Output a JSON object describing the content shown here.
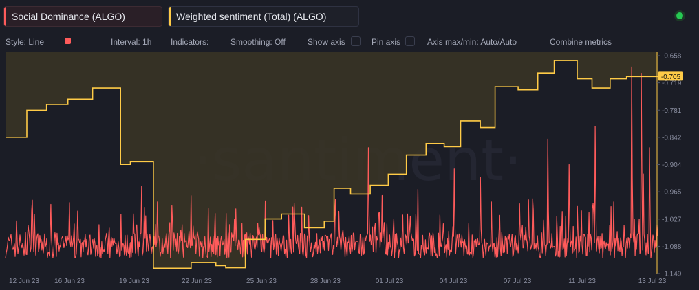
{
  "metrics": [
    {
      "label": "Social Dominance (ALGO)",
      "color": "#ff5b5b"
    },
    {
      "label": "Weighted sentiment (Total) (ALGO)",
      "color": "#ffcb47"
    }
  ],
  "toolbar": {
    "style": "Style: Line",
    "interval": "Interval: 1h",
    "indicators": "Indicators:",
    "smoothing": "Smoothing: Off",
    "show_axis": "Show axis",
    "pin_axis": "Pin axis",
    "axis_minmax": "Axis max/min: Auto/Auto",
    "combine": "Combine metrics"
  },
  "watermark": "·santiment·",
  "chart_data": {
    "type": "line",
    "x_labels": [
      "12 Jun 23",
      "16 Jun 23",
      "19 Jun 23",
      "22 Jun 23",
      "25 Jun 23",
      "28 Jun 23",
      "01 Jul 23",
      "04 Jul 23",
      "07 Jul 23",
      "11 Jul 23",
      "13 Jul 23"
    ],
    "y_ticks": [
      "-0.658",
      "-0.719",
      "-0.781",
      "-0.842",
      "-0.904",
      "-0.965",
      "-1.027",
      "-1.088",
      "-1.149"
    ],
    "ylim": [
      -1.149,
      -0.658
    ],
    "current_value_label": "-0.705",
    "current_value": -0.705,
    "series": [
      {
        "name": "Weighted sentiment (Total) (ALGO)",
        "color": "#ffcb47",
        "x_days": [
          0,
          1.3,
          1.3,
          2.5,
          2.5,
          3.8,
          3.8,
          5.3,
          5.3,
          7.0,
          7.0,
          7.6,
          7.6,
          9.0,
          9.0,
          11.3,
          11.3,
          12.8,
          12.8,
          13.4,
          13.4,
          14.6,
          14.6,
          15.8,
          15.8,
          16.8,
          16.8,
          18.2,
          18.2,
          19.4,
          19.4,
          20.0,
          20.0,
          21.0,
          21.0,
          22.2,
          22.2,
          23.3,
          23.3,
          24.4,
          24.4,
          25.6,
          25.6,
          26.7,
          26.7,
          27.7,
          27.7,
          28.9,
          28.9,
          29.8,
          29.8,
          31.2,
          31.2,
          32.4,
          32.4,
          33.4,
          33.4,
          34.8,
          34.8,
          35.7,
          35.7,
          36.8,
          36.8,
          37.8,
          37.8,
          38.8,
          38.8,
          39.7,
          39.7
        ],
        "values": [
          -0.842,
          -0.842,
          -0.781,
          -0.781,
          -0.768,
          -0.768,
          -0.756,
          -0.756,
          -0.731,
          -0.731,
          -0.903,
          -0.903,
          -0.897,
          -0.897,
          -1.137,
          -1.137,
          -1.124,
          -1.124,
          -1.131,
          -1.131,
          -1.136,
          -1.136,
          -1.072,
          -1.072,
          -1.026,
          -1.026,
          -1.015,
          -1.015,
          -1.046,
          -1.046,
          -1.031,
          -1.031,
          -0.957,
          -0.957,
          -0.97,
          -0.97,
          -0.95,
          -0.95,
          -0.925,
          -0.925,
          -0.882,
          -0.882,
          -0.856,
          -0.856,
          -0.863,
          -0.863,
          -0.805,
          -0.805,
          -0.82,
          -0.82,
          -0.728,
          -0.728,
          -0.735,
          -0.735,
          -0.697,
          -0.697,
          -0.669,
          -0.669,
          -0.71,
          -0.71,
          -0.731,
          -0.731,
          -0.71,
          -0.71,
          -0.705,
          -0.705,
          -0.705,
          -0.705,
          -0.705
        ]
      },
      {
        "name": "Social Dominance (ALGO)",
        "color": "#ff5b5b",
        "spikes": [
          {
            "day": 22.1,
            "rel": 0.58
          },
          {
            "day": 27.3,
            "rel": 0.48
          },
          {
            "day": 28.9,
            "rel": 0.44
          },
          {
            "day": 33.0,
            "rel": 0.62
          },
          {
            "day": 34.3,
            "rel": 0.5
          },
          {
            "day": 35.9,
            "rel": 0.68
          },
          {
            "day": 38.1,
            "rel": 0.96
          },
          {
            "day": 38.7,
            "rel": 0.93
          },
          {
            "day": 39.2,
            "rel": 0.58
          }
        ]
      }
    ]
  }
}
